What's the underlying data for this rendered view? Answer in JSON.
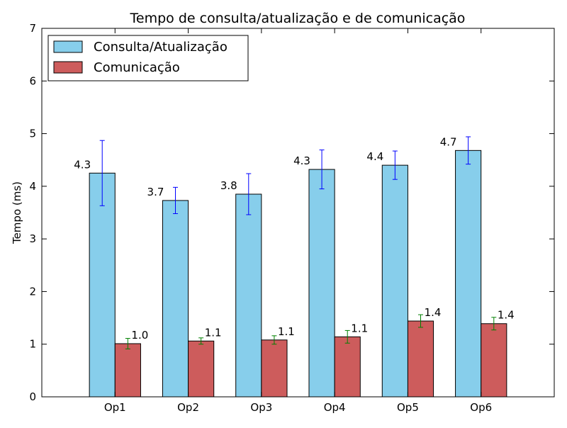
{
  "chart_data": {
    "type": "bar",
    "title": "Tempo de consulta/atualização e de comunicação",
    "xlabel": "",
    "ylabel": "Tempo (ms)",
    "ylim": [
      0,
      7
    ],
    "yticks": [
      "0",
      "1",
      "2",
      "3",
      "4",
      "5",
      "6",
      "7"
    ],
    "xlim": [
      -0.5,
      6.5
    ],
    "categories": [
      "Op1",
      "Op2",
      "Op3",
      "Op4",
      "Op5",
      "Op6"
    ],
    "legend_position": "top-left",
    "grid": false,
    "series": [
      {
        "name": "Consulta/Atualização",
        "color": "#87ceeb",
        "error_color": "#0000ff",
        "values": [
          4.25,
          3.73,
          3.85,
          4.32,
          4.4,
          4.68
        ],
        "errors": [
          0.62,
          0.25,
          0.39,
          0.37,
          0.27,
          0.26
        ],
        "labels": [
          "4.3",
          "3.7",
          "3.8",
          "4.3",
          "4.4",
          "4.7"
        ]
      },
      {
        "name": "Comunicação",
        "color": "#cd5c5c",
        "error_color": "#008000",
        "values": [
          1.01,
          1.06,
          1.08,
          1.14,
          1.44,
          1.39
        ],
        "errors": [
          0.1,
          0.06,
          0.08,
          0.12,
          0.12,
          0.12
        ],
        "labels": [
          "1.0",
          "1.1",
          "1.1",
          "1.1",
          "1.4",
          "1.4"
        ]
      }
    ]
  }
}
